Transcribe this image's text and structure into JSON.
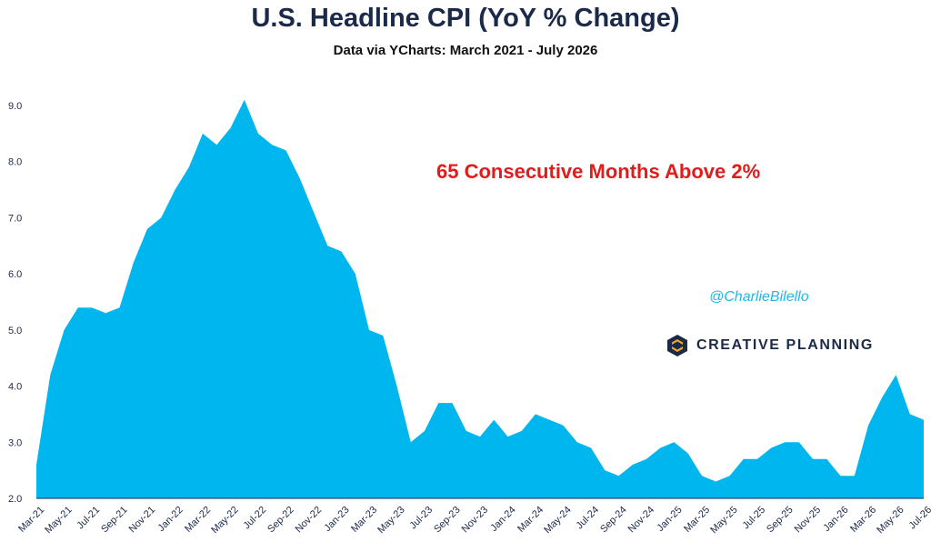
{
  "title": "U.S. Headline CPI (YoY % Change)",
  "subtitle": "Data via YCharts: March 2021 - July 2026",
  "annotation": "65 Consecutive Months Above 2%",
  "handle": "@CharlieBilello",
  "brand": "CREATIVE PLANNING",
  "brand_mark": "creative-planning-logo",
  "colors": {
    "area": "#00b6ef",
    "title": "#1b2a49",
    "annotation": "#e21b1b",
    "handle": "#21b6ea"
  },
  "chart_data": {
    "type": "area",
    "title": "U.S. Headline CPI (YoY % Change)",
    "subtitle": "Data via YCharts: March 2021 - July 2026",
    "ylim": [
      2.0,
      9.0
    ],
    "yticks": [
      "9.0",
      "8.0",
      "7.0",
      "6.0",
      "5.0",
      "4.0",
      "3.0",
      "2.0"
    ],
    "grid": false,
    "xtick_labels": [
      "Mar-21",
      "May-21",
      "Jul-21",
      "Sep-21",
      "Nov-21",
      "Jan-22",
      "Mar-22",
      "May-22",
      "Jul-22",
      "Sep-22",
      "Nov-22",
      "Jan-23",
      "Mar-23",
      "May-23",
      "Jul-23",
      "Sep-23",
      "Nov-23",
      "Jan-24",
      "Mar-24",
      "May-24",
      "Jul-24",
      "Sep-24",
      "Nov-24",
      "Jan-25",
      "Mar-25",
      "May-25",
      "Jul-25",
      "Sep-25",
      "Nov-25",
      "Jan-26",
      "Mar-26",
      "May-26",
      "Jul-26"
    ],
    "series": [
      {
        "values": [
          2.6,
          4.2,
          5.0,
          5.4,
          5.4,
          5.3,
          5.4,
          6.2,
          6.8,
          7.0,
          7.5,
          7.9,
          8.5,
          8.3,
          8.6,
          9.1,
          8.5,
          8.3,
          8.2,
          7.7,
          7.1,
          6.5,
          6.4,
          6.0,
          5.0,
          4.9,
          4.0,
          3.0,
          3.2,
          3.7,
          3.7,
          3.2,
          3.1,
          3.4,
          3.1,
          3.2,
          3.5,
          3.4,
          3.3,
          3.0,
          2.9,
          2.5,
          2.4,
          2.6,
          2.7,
          2.9,
          3.0,
          2.8,
          2.4,
          2.3,
          2.4,
          2.7,
          2.7,
          2.9,
          3.0,
          3.0,
          2.7,
          2.7,
          2.4,
          2.4,
          3.3,
          3.8,
          4.2,
          3.5,
          3.4
        ]
      }
    ]
  }
}
